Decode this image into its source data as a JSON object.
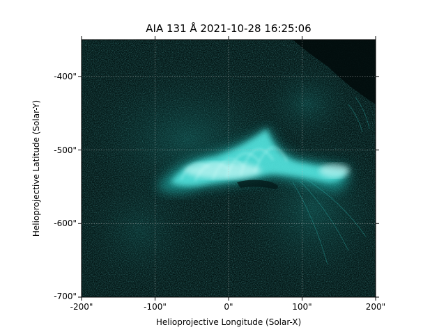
{
  "figure": {
    "title": "AIA 131 Å 2021-10-28 16:25:06",
    "xlabel": "Helioprojective Longitude (Solar-X)",
    "ylabel": "Helioprojective Latitude (Solar-Y)",
    "x_ticks": [
      "-200\"",
      "-100\"",
      "0\"",
      "100\"",
      "200\""
    ],
    "y_ticks": [
      "-400\"",
      "-500\"",
      "-600\"",
      "-700\""
    ],
    "x_range": [
      -200,
      200
    ],
    "y_range": [
      -700,
      -350
    ],
    "grid": true,
    "colors": {
      "background": "#000000",
      "emission": "#33e6e0",
      "grid": "#bcbcbc"
    }
  }
}
